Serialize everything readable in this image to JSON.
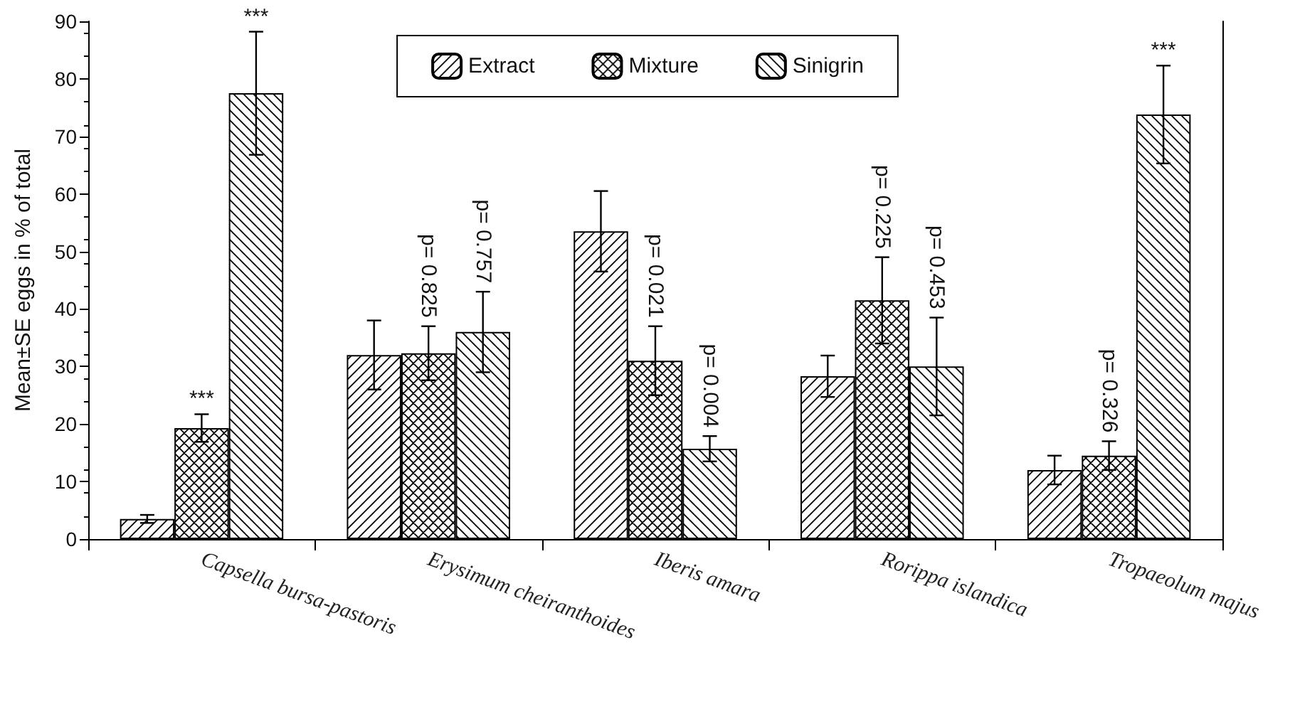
{
  "chart_data": {
    "type": "bar",
    "ylabel": "Mean±SE eggs in % of total",
    "categories": [
      "Capsella bursa-pastoris",
      "Erysimum cheiranthoides",
      "Iberis amara",
      "Rorippa islandica",
      "Tropaeolum majus"
    ],
    "series": [
      {
        "name": "Extract",
        "color": "#000000",
        "values": [
          3.5,
          32,
          53.5,
          28.3,
          12
        ],
        "errors": [
          0.7,
          6,
          7,
          3.6,
          2.5
        ]
      },
      {
        "name": "Mixture",
        "color": "#000000",
        "values": [
          19.3,
          32.3,
          31,
          41.5,
          14.5
        ],
        "errors": [
          2.4,
          4.7,
          6,
          7.5,
          2.5
        ]
      },
      {
        "name": "Sinigrin",
        "color": "#000000",
        "values": [
          77.5,
          36,
          15.7,
          30,
          73.8
        ],
        "errors": [
          10.7,
          7,
          2.2,
          8.5,
          8.5
        ]
      }
    ],
    "ylim": [
      0,
      90
    ],
    "yticks": [
      0,
      10,
      20,
      30,
      40,
      50,
      60,
      70,
      80,
      90
    ],
    "grid": false,
    "legend": "top",
    "annotations": [
      {
        "text": "***",
        "x": "Capsella bursa-pastoris",
        "y": 21.7
      },
      "***",
      {
        "text": "p= 0.825",
        "x": "Erysimum cheiranthoides",
        "y": 37
      },
      "p= 0.757",
      {
        "text": "p= 0.021",
        "x": "Iberis amara",
        "y": 37
      },
      "p= 0.004",
      {
        "text": "p= 0.225",
        "x": "Rorippa islandica",
        "y": 49
      },
      {
        "text": "p= 0.453",
        "x": "Rorippa islandica",
        "y": 38.5
      },
      {
        "text": "p= 0.326",
        "x": "Tropaeolum majus",
        "y": 17
      },
      "***"
    ]
  }
}
